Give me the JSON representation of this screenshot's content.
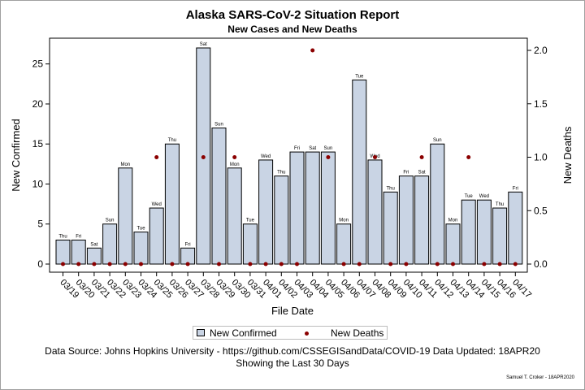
{
  "title": "Alaska SARS-CoV-2 Situation Report",
  "subtitle": "New Cases and New Deaths",
  "footnote1": "Data Source: Johns Hopkins University - https://github.com/CSSEGISandData/COVID-19 Data Updated: 18APR20",
  "footnote2": "Showing the Last 30 Days",
  "credit": "Samuel T. Croker - 18APR2020",
  "legend": {
    "confirmed": "New Confirmed",
    "deaths": "New Deaths"
  },
  "colors": {
    "bar_fill": "#c9d4e4",
    "bar_stroke": "#000000",
    "death_marker": "#8b0000"
  },
  "chart_data": {
    "type": "bar",
    "xlabel": "File Date",
    "ylabel": "New Confirmed",
    "y2label": "New Deaths",
    "ylim": [
      0,
      28
    ],
    "y2lim": [
      0,
      2.1
    ],
    "yticks": [
      0,
      5,
      10,
      15,
      20,
      25
    ],
    "y2ticks": [
      "0.0",
      "0.5",
      "1.0",
      "1.5",
      "2.0"
    ],
    "grid": false,
    "legend_position": "bottom",
    "categories": [
      "03/19",
      "03/20",
      "03/21",
      "03/22",
      "03/23",
      "03/24",
      "03/25",
      "03/26",
      "03/27",
      "03/28",
      "03/29",
      "03/30",
      "03/31",
      "04/01",
      "04/02",
      "04/03",
      "04/04",
      "04/05",
      "04/06",
      "04/07",
      "04/08",
      "04/09",
      "04/10",
      "04/11",
      "04/12",
      "04/13",
      "04/14",
      "04/15",
      "04/16",
      "04/17"
    ],
    "day_labels": [
      "Thu",
      "Fri",
      "Sat",
      "Sun",
      "Mon",
      "Tue",
      "Wed",
      "Thu",
      "Fri",
      "Sat",
      "Sun",
      "Mon",
      "Tue",
      "Wed",
      "Thu",
      "Fri",
      "Sat",
      "Sun",
      "Mon",
      "Tue",
      "Wed",
      "Thu",
      "Fri",
      "Sat",
      "Sun",
      "Mon",
      "Tue",
      "Wed",
      "Thu",
      "Fri"
    ],
    "series": [
      {
        "name": "New Confirmed",
        "type": "bar",
        "axis": "left",
        "values": [
          3,
          3,
          2,
          5,
          12,
          4,
          7,
          15,
          2,
          27,
          17,
          12,
          5,
          13,
          11,
          14,
          14,
          14,
          5,
          23,
          13,
          9,
          11,
          11,
          15,
          5,
          8,
          8,
          7,
          9
        ]
      },
      {
        "name": "New Deaths",
        "type": "scatter",
        "axis": "right",
        "values": [
          0,
          0,
          0,
          0,
          0,
          0,
          1,
          0,
          0,
          1,
          0,
          1,
          0,
          0,
          0,
          0,
          2,
          1,
          0,
          0,
          1,
          0,
          0,
          1,
          0,
          0,
          1,
          0,
          0,
          0
        ]
      }
    ]
  }
}
